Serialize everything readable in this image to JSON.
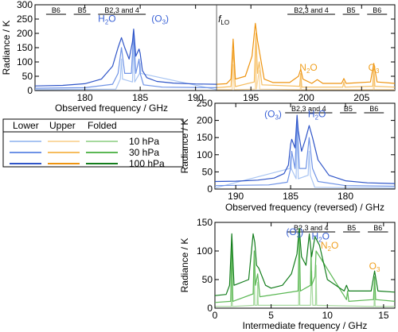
{
  "legend": {
    "headers": [
      "Lower",
      "Upper",
      "Folded"
    ],
    "rows": [
      {
        "label": "10 hPa",
        "colors": [
          "#a8c4f2",
          "#fad9a3",
          "#a6d99e"
        ]
      },
      {
        "label": "30 hPa",
        "colors": [
          "#6f93e6",
          "#f6bd5f",
          "#5cb855"
        ]
      },
      {
        "label": "100 hPa",
        "colors": [
          "#2f55c8",
          "#ee9410",
          "#137d1c"
        ]
      }
    ]
  },
  "chart_data": [
    {
      "type": "line",
      "panel": "top",
      "xlabel": "Observed frequency / GHz",
      "ylabel": "Radiance / K",
      "xlim": [
        175.5,
        208
      ],
      "ylim": [
        0,
        300
      ],
      "xticks": [
        180,
        185,
        190,
        195,
        200,
        205
      ],
      "yticks": [
        0,
        50,
        100,
        150,
        200,
        250,
        300
      ],
      "lo_frequency": 191.9,
      "lo_label": "f",
      "lo_label_sub": "LO",
      "bands": [
        {
          "label": "B6",
          "x0": 176.5,
          "x1": 178.3
        },
        {
          "label": "B5",
          "x0": 179.0,
          "x1": 180.5
        },
        {
          "label": "B2,3 and 4",
          "x0": 181.2,
          "x1": 185.5
        },
        {
          "label": "B2,3 and 4",
          "x0": 198.3,
          "x1": 202.6
        },
        {
          "label": "B5",
          "x0": 203.3,
          "x1": 204.8
        },
        {
          "label": "B6",
          "x0": 205.5,
          "x1": 207.3
        }
      ],
      "annotations": [
        {
          "text": "H",
          "sub": "2",
          "tail": "O",
          "x": 182.0,
          "y": 240,
          "color": "#3a62d6"
        },
        {
          "text": "(O",
          "sub": "3",
          "tail": ")",
          "x": 186.8,
          "y": 240,
          "color": "#3a62d6"
        },
        {
          "text": "N",
          "sub": "2",
          "tail": "O",
          "x": 200.2,
          "y": 70,
          "color": "#f0a020"
        },
        {
          "text": "O",
          "sub": "3",
          "tail": "",
          "x": 206.1,
          "y": 70,
          "color": "#f0a020"
        }
      ],
      "series": [
        {
          "sideband": "lower",
          "color": "#2f55c8",
          "x": [
            175.5,
            178,
            180,
            181.5,
            182.5,
            183.0,
            183.31,
            183.6,
            184.0,
            184.3,
            184.41,
            184.6,
            184.9,
            185.0,
            185.2,
            185.6,
            186.5,
            188,
            190,
            191.9
          ],
          "y": [
            16,
            18,
            24,
            40,
            85,
            150,
            185,
            150,
            110,
            170,
            215,
            120,
            145,
            130,
            70,
            45,
            32,
            26,
            23,
            22
          ]
        },
        {
          "sideband": "lower",
          "color": "#6f93e6",
          "x": [
            175.5,
            180,
            182.5,
            183.0,
            183.31,
            183.6,
            184.2,
            184.41,
            184.6,
            184.9,
            185.0,
            185.3,
            187,
            191.9
          ],
          "y": [
            8,
            10,
            22,
            60,
            150,
            60,
            60,
            200,
            60,
            110,
            60,
            20,
            12,
            10
          ]
        },
        {
          "sideband": "lower",
          "color": "#a8c4f2",
          "x": [
            175.5,
            182.8,
            183.2,
            183.31,
            183.4,
            184.3,
            184.41,
            184.5,
            184.95,
            185.0,
            185.05,
            191.9
          ],
          "y": [
            3,
            5,
            40,
            110,
            40,
            30,
            180,
            30,
            60,
            95,
            60,
            3
          ]
        },
        {
          "sideband": "upper",
          "color": "#ee9410",
          "x": [
            191.9,
            192.8,
            193.2,
            193.4,
            193.6,
            194.5,
            195.1,
            195.4,
            195.6,
            195.8,
            196.2,
            197,
            198.5,
            199.3,
            199.5,
            199.7,
            200.5,
            201.0,
            201.5,
            203.2,
            203.4,
            203.6,
            205.8,
            206.1,
            206.4,
            208
          ],
          "y": [
            22,
            24,
            40,
            180,
            40,
            50,
            120,
            235,
            175,
            130,
            40,
            28,
            28,
            50,
            75,
            40,
            25,
            38,
            25,
            25,
            42,
            25,
            30,
            95,
            30,
            25
          ]
        },
        {
          "sideband": "upper",
          "color": "#f6bd5f",
          "x": [
            191.9,
            193.2,
            193.4,
            193.6,
            195.3,
            195.45,
            195.6,
            195.75,
            196.0,
            199.4,
            199.5,
            199.6,
            203.3,
            203.4,
            203.5,
            206.0,
            206.1,
            206.2,
            208
          ],
          "y": [
            10,
            14,
            140,
            14,
            30,
            200,
            60,
            100,
            20,
            15,
            60,
            12,
            12,
            30,
            12,
            15,
            80,
            15,
            12
          ]
        },
        {
          "sideband": "upper",
          "color": "#fad9a3",
          "x": [
            191.9,
            193.3,
            193.4,
            193.5,
            195.4,
            195.45,
            195.5,
            195.75,
            195.8,
            199.45,
            199.5,
            199.55,
            206.05,
            206.1,
            206.15,
            208
          ],
          "y": [
            3,
            3,
            90,
            3,
            5,
            160,
            5,
            70,
            5,
            3,
            40,
            3,
            3,
            55,
            3,
            3
          ]
        }
      ]
    },
    {
      "type": "line",
      "panel": "middle",
      "xlabel": "Observed frequency (reversed) / GHz",
      "ylabel": "Radiance / K",
      "xlim": [
        191.9,
        175.5
      ],
      "ylim": [
        0,
        250
      ],
      "xticks": [
        190,
        185,
        180
      ],
      "yticks": [
        0,
        50,
        100,
        150,
        200,
        250
      ],
      "bands": [
        {
          "label": "B2,3 and 4",
          "x0": 185.5,
          "x1": 181.2
        },
        {
          "label": "B5",
          "x0": 180.5,
          "x1": 179.0
        },
        {
          "label": "B6",
          "x0": 178.3,
          "x1": 176.5
        }
      ],
      "annotations": [
        {
          "text": "(O",
          "sub": "3",
          "tail": ")",
          "x": 186.6,
          "y": 210,
          "color": "#3a62d6"
        },
        {
          "text": "H",
          "sub": "2",
          "tail": "O",
          "x": 182.6,
          "y": 210,
          "color": "#3a62d6"
        }
      ],
      "series": [
        {
          "sideband": "lower",
          "color": "#2f55c8",
          "x": [
            191.9,
            190,
            188,
            186.5,
            185.6,
            185.2,
            185.0,
            184.9,
            184.6,
            184.41,
            184.3,
            184.0,
            183.6,
            183.31,
            183.0,
            182.5,
            181.5,
            180,
            178,
            175.5
          ],
          "y": [
            22,
            23,
            26,
            32,
            45,
            70,
            130,
            145,
            120,
            215,
            170,
            110,
            150,
            185,
            150,
            85,
            40,
            24,
            18,
            16
          ]
        },
        {
          "sideband": "lower",
          "color": "#6f93e6",
          "x": [
            191.9,
            187,
            185.3,
            185.0,
            184.9,
            184.6,
            184.41,
            184.2,
            183.6,
            183.31,
            183.0,
            182.5,
            180,
            175.5
          ],
          "y": [
            10,
            12,
            20,
            60,
            110,
            60,
            200,
            60,
            60,
            150,
            60,
            22,
            10,
            8
          ]
        },
        {
          "sideband": "lower",
          "color": "#a8c4f2",
          "x": [
            191.9,
            185.05,
            185.0,
            184.95,
            184.5,
            184.41,
            184.3,
            183.4,
            183.31,
            183.2,
            182.8,
            175.5
          ],
          "y": [
            3,
            60,
            95,
            60,
            30,
            180,
            30,
            40,
            110,
            40,
            5,
            3
          ]
        }
      ]
    },
    {
      "type": "line",
      "panel": "bottom",
      "xlabel": "Intermediate frequency / GHz",
      "ylabel": "Radiance / K",
      "xlim": [
        0,
        16
      ],
      "ylim": [
        0,
        150
      ],
      "xticks": [
        0,
        5,
        10,
        15
      ],
      "yticks": [
        0,
        50,
        100,
        150
      ],
      "bands": [
        {
          "label": "B2,3 and 4",
          "x0": 6.4,
          "x1": 10.7
        },
        {
          "label": "B5",
          "x0": 11.4,
          "x1": 12.9
        },
        {
          "label": "B6",
          "x0": 13.6,
          "x1": 15.4
        }
      ],
      "annotations": [
        {
          "text": "(O",
          "sub": "3",
          "tail": ")",
          "x": 7.1,
          "y": 128,
          "color": "#3a62d6"
        },
        {
          "text": "H",
          "sub": "2",
          "tail": "O",
          "x": 9.4,
          "y": 120,
          "color": "#3a62d6"
        },
        {
          "text": "N",
          "sub": "2",
          "tail": "O",
          "x": 10.2,
          "y": 104,
          "color": "#f0a020"
        },
        {
          "text": "O",
          "sub": "3",
          "tail": "",
          "x": 14.2,
          "y": 68,
          "color": "#f0a020"
        }
      ],
      "series": [
        {
          "sideband": "folded",
          "color": "#137d1c",
          "x": [
            0,
            1.0,
            1.3,
            1.5,
            1.7,
            3.0,
            3.4,
            3.55,
            3.7,
            3.9,
            4.5,
            5.0,
            6.0,
            6.8,
            7.3,
            7.5,
            7.7,
            8.1,
            8.4,
            8.6,
            8.9,
            9.3,
            10.0,
            11.5,
            11.7,
            11.9,
            13.9,
            14.2,
            14.5,
            16
          ],
          "y": [
            22,
            24,
            40,
            130,
            40,
            50,
            130,
            115,
            75,
            70,
            40,
            35,
            40,
            60,
            95,
            140,
            90,
            75,
            130,
            90,
            125,
            110,
            50,
            30,
            40,
            30,
            30,
            65,
            30,
            28
          ]
        },
        {
          "sideband": "folded",
          "color": "#5cb855",
          "x": [
            0,
            1.4,
            1.5,
            1.6,
            3.4,
            3.5,
            3.6,
            3.8,
            4.0,
            7.4,
            7.5,
            7.6,
            8.5,
            8.55,
            8.6,
            8.9,
            9.0,
            11.7,
            11.8,
            11.9,
            14.1,
            14.2,
            14.3,
            16
          ],
          "y": [
            10,
            12,
            110,
            12,
            25,
            100,
            40,
            60,
            20,
            30,
            135,
            30,
            40,
            100,
            40,
            55,
            100,
            15,
            30,
            12,
            15,
            55,
            15,
            12
          ]
        },
        {
          "sideband": "folded",
          "color": "#a6d99e",
          "x": [
            0,
            1.45,
            1.5,
            1.55,
            3.45,
            3.5,
            3.55,
            3.75,
            3.8,
            3.85,
            7.45,
            7.5,
            7.55,
            8.5,
            8.6,
            8.7,
            8.95,
            9.0,
            9.05,
            14.15,
            14.2,
            14.25,
            16
          ],
          "y": [
            3,
            3,
            80,
            3,
            5,
            90,
            5,
            5,
            45,
            5,
            5,
            110,
            5,
            5,
            65,
            5,
            5,
            75,
            5,
            3,
            35,
            3,
            3
          ]
        }
      ]
    }
  ]
}
